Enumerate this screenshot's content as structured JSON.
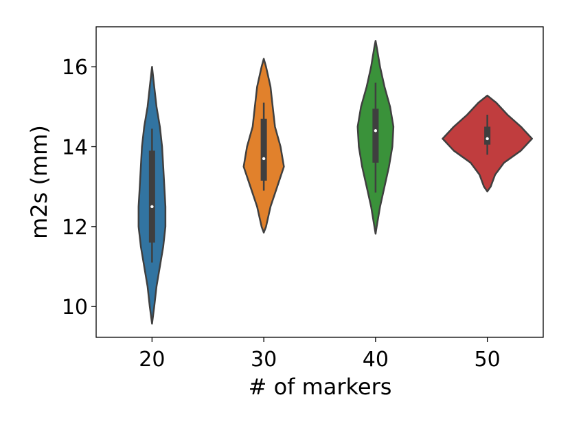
{
  "chart_data": {
    "type": "violin",
    "x_label": "# of markers",
    "y_label": "m2s (mm)",
    "categories": [
      "20",
      "30",
      "40",
      "50"
    ],
    "ylim": [
      9.23,
      17.0
    ],
    "yticks": [
      10,
      12,
      14,
      16
    ],
    "violins": [
      {
        "color": "#3274a1",
        "median": 12.5,
        "q1": 11.6,
        "q3": 13.9,
        "whisker_low": 11.1,
        "whisker_high": 14.45,
        "density": {
          "y": [
            9.57,
            10.0,
            10.5,
            11.0,
            11.5,
            12.0,
            12.5,
            13.0,
            13.5,
            14.0,
            14.5,
            15.0,
            15.5,
            16.0
          ],
          "half_width": [
            0,
            0.02,
            0.04,
            0.07,
            0.1,
            0.12,
            0.12,
            0.11,
            0.1,
            0.09,
            0.07,
            0.04,
            0.02,
            0
          ]
        }
      },
      {
        "color": "#e1812c",
        "median": 13.7,
        "q1": 13.15,
        "q3": 14.7,
        "whisker_low": 12.9,
        "whisker_high": 15.1,
        "density": {
          "y": [
            11.85,
            12.0,
            12.5,
            13.0,
            13.5,
            14.0,
            14.5,
            15.0,
            15.5,
            16.0,
            16.2
          ],
          "half_width": [
            0,
            0.02,
            0.06,
            0.12,
            0.18,
            0.15,
            0.1,
            0.08,
            0.06,
            0.02,
            0
          ]
        }
      },
      {
        "color": "#3a923a",
        "median": 14.4,
        "q1": 13.6,
        "q3": 14.95,
        "whisker_low": 12.85,
        "whisker_high": 15.6,
        "density": {
          "y": [
            11.82,
            12.0,
            12.5,
            13.0,
            13.5,
            14.0,
            14.5,
            15.0,
            15.5,
            16.0,
            16.5,
            16.65
          ],
          "half_width": [
            0,
            0.01,
            0.04,
            0.08,
            0.12,
            0.15,
            0.16,
            0.13,
            0.08,
            0.04,
            0.01,
            0
          ]
        }
      },
      {
        "color": "#c03d3e",
        "median": 14.2,
        "q1": 14.05,
        "q3": 14.5,
        "whisker_low": 13.8,
        "whisker_high": 14.8,
        "density": {
          "y": [
            12.88,
            13.0,
            13.3,
            13.6,
            13.9,
            14.2,
            14.5,
            14.8,
            15.1,
            15.28
          ],
          "half_width": [
            0,
            0.03,
            0.07,
            0.15,
            0.3,
            0.4,
            0.3,
            0.18,
            0.08,
            0
          ]
        }
      }
    ]
  }
}
